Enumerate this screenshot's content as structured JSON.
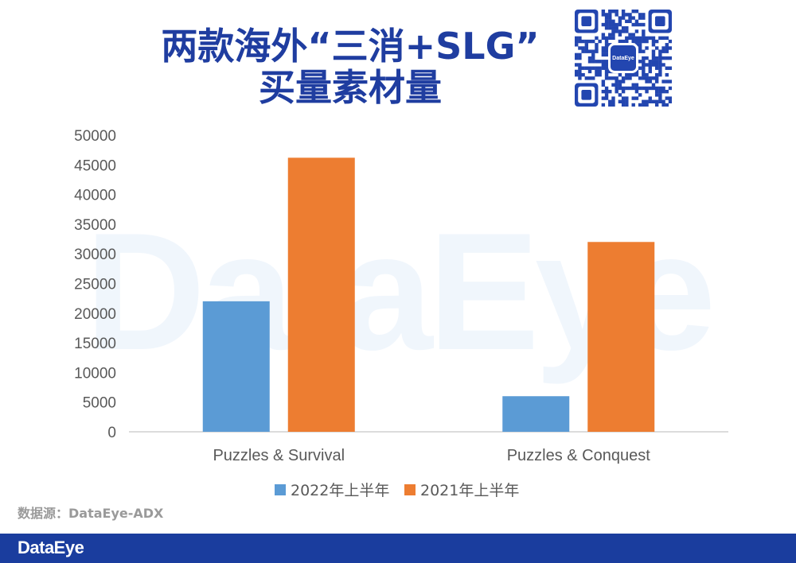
{
  "header": {
    "title_line1": "两款海外“三消+SLG”",
    "title_line2": "买量素材量"
  },
  "qr": {
    "logo_text": "DataEye"
  },
  "watermark_text": "DataEye",
  "source_text": "数据源：DataEye-ADX",
  "footer": {
    "logo_text": "DataEye"
  },
  "colors": {
    "title": "#1f3da0",
    "series_2022": "#5b9bd5",
    "series_2021": "#ed7d31",
    "footer": "#1a3d9e"
  },
  "chart_data": {
    "type": "bar",
    "title": "两款海外“三消+SLG”买量素材量",
    "categories": [
      "Puzzles & Survival",
      "Puzzles & Conquest"
    ],
    "series": [
      {
        "name": "2022年上半年",
        "values": [
          22000,
          6000
        ],
        "color": "#5b9bd5"
      },
      {
        "name": "2021年上半年",
        "values": [
          46200,
          32000
        ],
        "color": "#ed7d31"
      }
    ],
    "yticks": [
      0,
      5000,
      10000,
      15000,
      20000,
      25000,
      30000,
      35000,
      40000,
      45000,
      50000
    ],
    "ylim": [
      0,
      50000
    ],
    "grid": false,
    "legend_position": "bottom"
  }
}
